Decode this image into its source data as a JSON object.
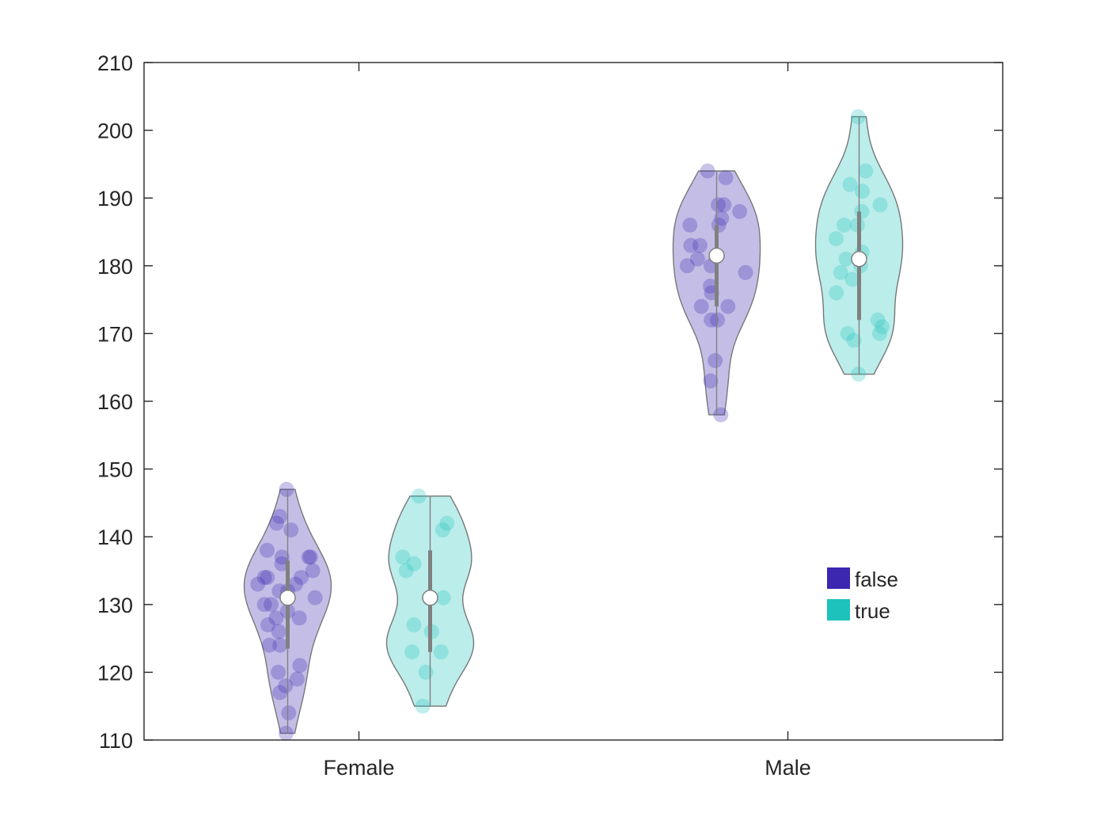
{
  "chart_data": {
    "type": "violin",
    "title": "",
    "xlabel": "",
    "ylabel": "",
    "categories": [
      "Female",
      "Male"
    ],
    "ylim": [
      110,
      210
    ],
    "yticks": [
      110,
      120,
      130,
      140,
      150,
      160,
      170,
      180,
      190,
      200,
      210
    ],
    "grid": false,
    "legend_position": "lower-right",
    "series": [
      {
        "name": "false",
        "color": "#3b27b0",
        "groups": [
          {
            "category": "Female",
            "min": 111,
            "max": 147,
            "q1": 123.5,
            "q3": 136.5,
            "median": 131,
            "points": [
              137,
              137,
              138,
              137,
              135,
              134,
              132,
              132,
              133,
              130,
              130,
              131,
              136,
              134,
              129,
              128,
              127,
              128,
              126,
              124,
              124,
              121,
              120,
              119,
              118,
              117,
              114,
              111,
              134,
              141,
              142,
              143,
              147,
              133
            ]
          },
          {
            "category": "Male",
            "min": 158,
            "max": 194,
            "q1": 174,
            "q3": 186,
            "median": 181.5,
            "points": [
              194,
              193,
              189,
              188,
              189,
              187,
              186,
              186,
              183,
              183,
              181,
              180,
              180,
              179,
              177,
              176,
              174,
              174,
              172,
              172,
              166,
              163,
              158
            ]
          }
        ]
      },
      {
        "name": "true",
        "color": "#1ec2bc",
        "groups": [
          {
            "category": "Female",
            "min": 115,
            "max": 146,
            "q1": 123,
            "q3": 138,
            "median": 131,
            "points": [
              146,
              142,
              141,
              137,
              136,
              135,
              131,
              127,
              126,
              123,
              123,
              120,
              115
            ]
          },
          {
            "category": "Male",
            "min": 164,
            "max": 202,
            "q1": 172,
            "q3": 188,
            "median": 181,
            "points": [
              202,
              194,
              192,
              191,
              189,
              188,
              186,
              186,
              184,
              182,
              181,
              180,
              179,
              178,
              176,
              172,
              171,
              170,
              170,
              169,
              164
            ]
          }
        ]
      }
    ]
  }
}
